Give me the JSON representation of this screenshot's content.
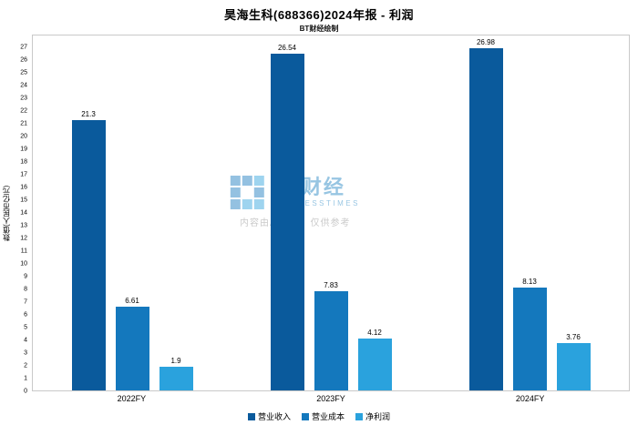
{
  "title": "昊海生科(688366)2024年报 - 利润",
  "subtitle": "BT财经绘制",
  "watermark": {
    "brand": "BT财经",
    "brand_sub": "BUSINESSTIMES",
    "disclaimer": "内容由AI生成，仅供参考"
  },
  "chart_data": {
    "type": "bar",
    "categories": [
      "2022FY",
      "2023FY",
      "2024FY"
    ],
    "series": [
      {
        "name": "营业收入",
        "color": "#0a5a9c",
        "values": [
          21.3,
          26.54,
          26.98
        ]
      },
      {
        "name": "营业成本",
        "color": "#1478bd",
        "values": [
          6.61,
          7.83,
          8.13
        ]
      },
      {
        "name": "净利润",
        "color": "#2aa2dd",
        "values": [
          1.9,
          4.12,
          3.76
        ]
      }
    ],
    "xlabel": "",
    "ylabel": "数值(人民币亿元)",
    "ylim": [
      0,
      28
    ],
    "yticks": [
      0,
      1,
      2,
      3,
      4,
      5,
      6,
      7,
      8,
      9,
      10,
      11,
      12,
      13,
      14,
      15,
      16,
      17,
      18,
      19,
      20,
      21,
      22,
      23,
      24,
      25,
      26,
      27
    ],
    "grid": false,
    "legend_position": "bottom"
  }
}
